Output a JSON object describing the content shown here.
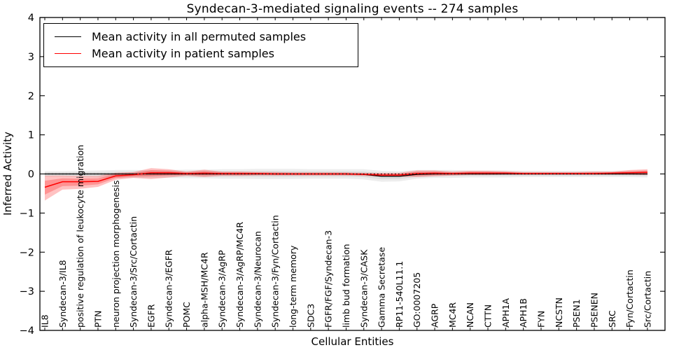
{
  "figure": {
    "title": "Syndecan-3-mediated signaling events -- 274 samples",
    "xlabel": "Cellular Entities",
    "ylabel": "Inferred Activity",
    "background_color": "#ffffff"
  },
  "legend": {
    "items": [
      {
        "label": "Mean activity in all permuted samples",
        "color": "#000000"
      },
      {
        "label": "Mean activity in patient samples",
        "color": "#ff0000"
      }
    ]
  },
  "chart_data": {
    "type": "line",
    "title": "Syndecan-3-mediated signaling events -- 274 samples",
    "xlabel": "Cellular Entities",
    "ylabel": "Inferred Activity",
    "ylim": [
      -4,
      4
    ],
    "yticks": [
      -4,
      -3,
      -2,
      -1,
      0,
      1,
      2,
      3,
      4
    ],
    "grid": false,
    "legend_position": "upper left",
    "categories": [
      "IL8",
      "Syndecan-3/IL8",
      "positive regulation of leukocyte migration",
      "PTN",
      "neuron projection morphogenesis",
      "Syndecan-3/Src/Cortactin",
      "EGFR",
      "Syndecan-3/EGFR",
      "POMC",
      "alpha-MSH/MC4R",
      "Syndecan-3/AgRP",
      "Syndecan-3/AgRP/MC4R",
      "Syndecan-3/Neurocan",
      "Syndecan-3/Fyn/Cortactin",
      "long-term memory",
      "SDC3",
      "FGFR/FGF/Syndecan-3",
      "limb bud formation",
      "Syndecan-3/CASK",
      "Gamma Secretase",
      "RP11-540L11.1",
      "GO:0007205",
      "AGRP",
      "MC4R",
      "NCAN",
      "CTTN",
      "APH1A",
      "APH1B",
      "FYN",
      "NCSTN",
      "PSEN1",
      "PSENEN",
      "SRC",
      "Fyn/Cortactin",
      "Src/Cortactin"
    ],
    "series": [
      {
        "name": "Mean activity in all permuted samples",
        "color": "#000000",
        "values": [
          0,
          0,
          0,
          0,
          0,
          0,
          0,
          0,
          0,
          0,
          0,
          0,
          0,
          0,
          0,
          0,
          0,
          0,
          -0.01,
          -0.06,
          -0.06,
          -0.01,
          0,
          0,
          0,
          0,
          0,
          0,
          0,
          0,
          0,
          0,
          0,
          0,
          0
        ]
      },
      {
        "name": "Mean activity in patient samples",
        "color": "#ff0000",
        "values": [
          -0.34,
          -0.2,
          -0.2,
          -0.19,
          -0.05,
          -0.02,
          0.03,
          0.03,
          0.01,
          0.02,
          0.01,
          0.01,
          0.01,
          0,
          0,
          0,
          0,
          0,
          -0.01,
          -0.03,
          -0.03,
          0.01,
          0.02,
          0.01,
          0.02,
          0.02,
          0.02,
          0.01,
          0.01,
          0.01,
          0.01,
          0.01,
          0.02,
          0.03,
          0.04
        ]
      }
    ],
    "bands": [
      {
        "name": "permuted-samples-range",
        "color": "#808080",
        "alpha": 0.14,
        "center_series": 0,
        "lo": [
          -0.07,
          -0.07,
          -0.08,
          -0.09,
          -0.1,
          -0.1,
          -0.1,
          -0.1,
          -0.11,
          -0.11,
          -0.12,
          -0.12,
          -0.13,
          -0.13,
          -0.13,
          -0.12,
          -0.12,
          -0.12,
          -0.14,
          -0.2,
          -0.19,
          -0.12,
          -0.1,
          -0.1,
          -0.09,
          -0.09,
          -0.09,
          -0.08,
          -0.08,
          -0.08,
          -0.08,
          -0.08,
          -0.08,
          -0.08,
          -0.09
        ],
        "hi": [
          0.07,
          0.07,
          0.08,
          0.09,
          0.1,
          0.1,
          0.1,
          0.1,
          0.11,
          0.11,
          0.12,
          0.12,
          0.13,
          0.13,
          0.13,
          0.12,
          0.12,
          0.12,
          0.12,
          0.08,
          0.07,
          0.1,
          0.1,
          0.1,
          0.09,
          0.09,
          0.09,
          0.08,
          0.08,
          0.08,
          0.08,
          0.08,
          0.08,
          0.08,
          0.09
        ]
      },
      {
        "name": "patient-samples-range",
        "color": "#ff0000",
        "alpha": 0.24,
        "center_series": 1,
        "lo": [
          -0.68,
          -0.4,
          -0.38,
          -0.33,
          -0.15,
          -0.1,
          -0.13,
          -0.09,
          -0.05,
          -0.08,
          -0.05,
          -0.05,
          -0.04,
          -0.04,
          -0.04,
          -0.04,
          -0.04,
          -0.04,
          -0.05,
          -0.07,
          -0.07,
          -0.08,
          -0.06,
          -0.04,
          -0.03,
          -0.03,
          -0.02,
          -0.02,
          -0.02,
          -0.02,
          -0.02,
          -0.02,
          -0.02,
          -0.02,
          -0.03
        ],
        "hi": [
          -0.04,
          -0.04,
          -0.05,
          -0.05,
          0.03,
          0.05,
          0.15,
          0.12,
          0.06,
          0.11,
          0.06,
          0.06,
          0.05,
          0.05,
          0.04,
          0.04,
          0.04,
          0.04,
          0.03,
          0.03,
          0.03,
          0.09,
          0.09,
          0.06,
          0.08,
          0.08,
          0.07,
          0.05,
          0.05,
          0.05,
          0.05,
          0.06,
          0.06,
          0.1,
          0.12
        ]
      }
    ],
    "zero_line": {
      "color": "#000000",
      "style": "dotted"
    }
  }
}
